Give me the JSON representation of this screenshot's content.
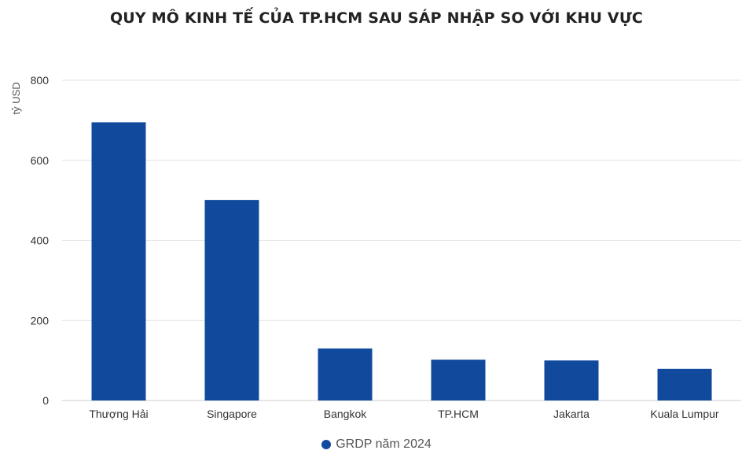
{
  "chart_data": {
    "type": "bar",
    "title": "QUY MÔ KINH TẾ CỦA TP.HCM SAU SÁP NHẬP SO VỚI KHU VỰC",
    "ylabel": "tỷ USD",
    "xlabel": "",
    "categories": [
      "Thượng Hải",
      "Singapore",
      "Bangkok",
      "TP.HCM",
      "Jakarta",
      "Kuala Lumpur"
    ],
    "series": [
      {
        "name": "GRDP năm 2024",
        "values": [
          695,
          501,
          130,
          102,
          100,
          79
        ],
        "color": "#114a9c"
      }
    ],
    "ylim": [
      0,
      800
    ],
    "yticks": [
      "0",
      "200",
      "400",
      "600",
      "800"
    ],
    "grid": true,
    "legend_position": "bottom-center",
    "gridline_color": "#e3e3e3"
  }
}
